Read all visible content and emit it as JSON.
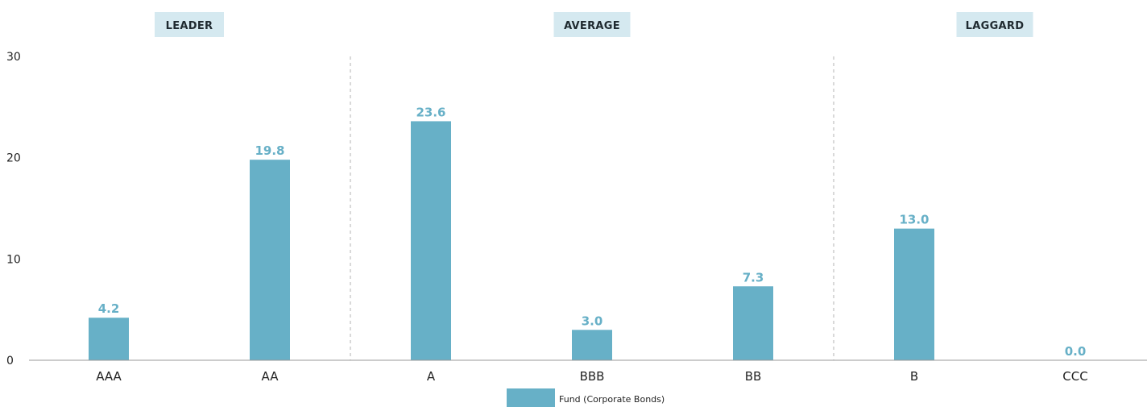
{
  "chart_data": {
    "type": "bar",
    "categories": [
      "AAA",
      "AA",
      "A",
      "BBB",
      "BB",
      "B",
      "CCC"
    ],
    "series": [
      {
        "name": "Fund (Corporate Bonds)",
        "values": [
          4.2,
          19.8,
          23.6,
          3.0,
          7.3,
          13.0,
          0.0
        ]
      }
    ],
    "data_labels": [
      "4.2",
      "19.8",
      "23.6",
      "3.0",
      "7.3",
      "13.0",
      "0.0"
    ],
    "y_ticks": [
      "0",
      "10",
      "20",
      "30"
    ],
    "ylim": [
      0,
      30
    ],
    "groups": [
      {
        "label": "LEADER",
        "categories": [
          "AAA",
          "AA"
        ]
      },
      {
        "label": "AVERAGE",
        "categories": [
          "A",
          "BBB",
          "BB"
        ]
      },
      {
        "label": "LAGGARD",
        "categories": [
          "B",
          "CCC"
        ]
      }
    ],
    "grid": false,
    "legend_position": "bottom-center",
    "colors": {
      "bar": "#67b0c7",
      "data_label": "#67b0c7",
      "group_header_bg": "#d5e9f0",
      "divider": "#b3b3b3",
      "axis": "#999999"
    }
  }
}
